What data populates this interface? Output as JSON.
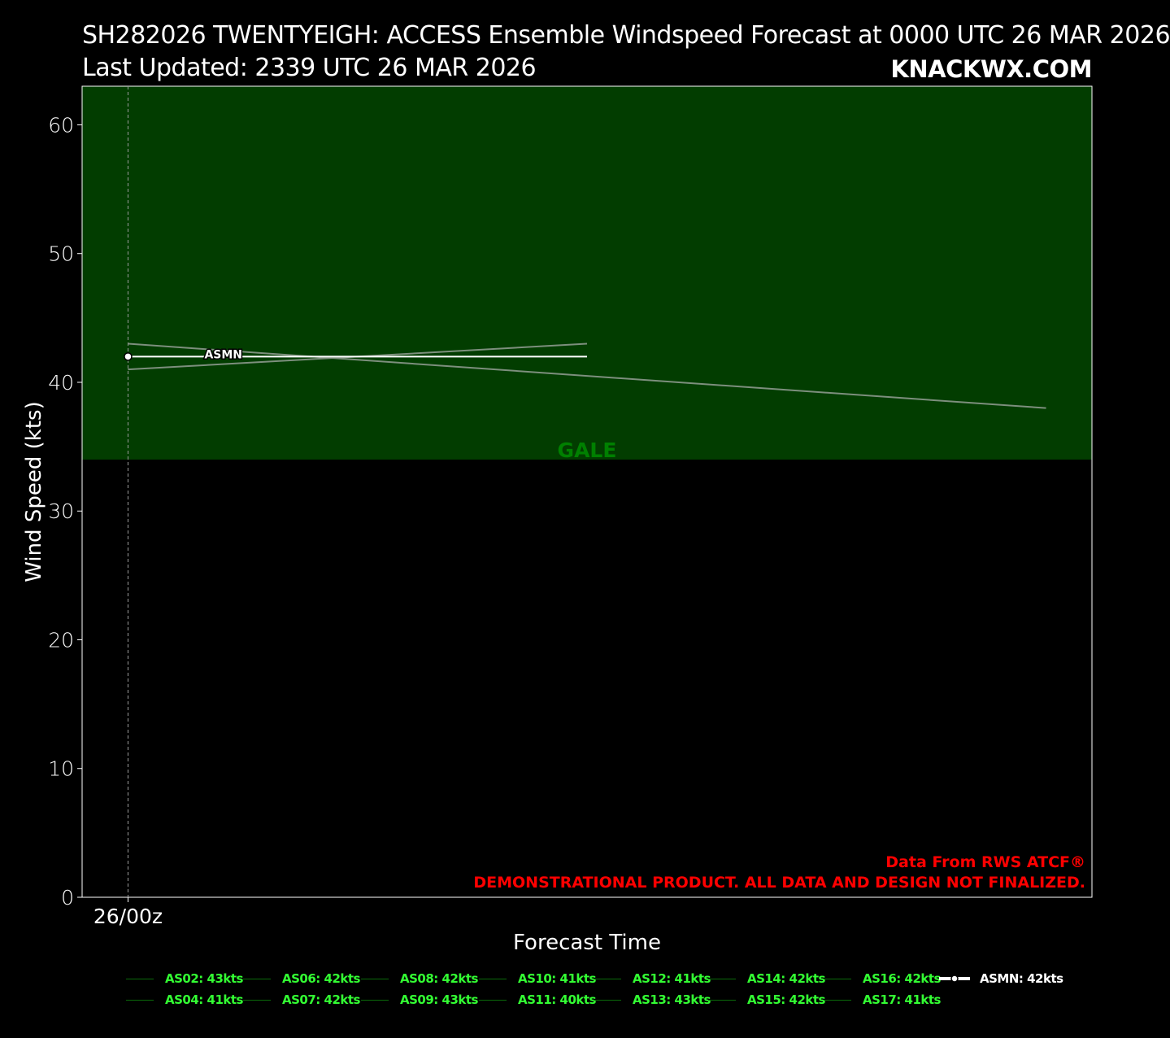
{
  "header": {
    "title_line1": "SH282026 TWENTYEIGH: ACCESS Ensemble Windspeed Forecast at 0000 UTC 26 MAR 2026",
    "title_line2": "Last Updated: 2339 UTC 26 MAR 2026",
    "brand": "KNACKWX.COM"
  },
  "chart_data": {
    "type": "line",
    "xlabel": "Forecast Time",
    "ylabel": "Wind Speed (kts)",
    "ylim": [
      0,
      63
    ],
    "yticks": [
      0,
      10,
      20,
      30,
      40,
      50,
      60
    ],
    "x_tick_labels": [
      {
        "hours": 0,
        "label": "26/00z"
      }
    ],
    "xlim_hours": [
      -6,
      126
    ],
    "grid": false,
    "categories": [
      {
        "name": "GALE",
        "min": 34,
        "max": 63,
        "color": "#023d00",
        "label_color": "#008000"
      }
    ],
    "series": [
      {
        "name": "AS02",
        "x": [
          0,
          60
        ],
        "values": [
          41,
          43
        ]
      },
      {
        "name": "AS08",
        "x": [
          0,
          120
        ],
        "values": [
          43,
          38
        ]
      },
      {
        "name": "ASMN",
        "x": [
          0,
          60
        ],
        "values": [
          42,
          42
        ],
        "mean": true
      }
    ],
    "mean_label": "ASMN",
    "disclaimer_line1": "Data From RWS ATCF®",
    "disclaimer_line2": "DEMONSTRATIONAL PRODUCT. ALL DATA AND DESIGN NOT FINALIZED.",
    "legend_placement": "bottom",
    "legend": [
      {
        "label": "AS02: 43kts",
        "col": 0,
        "row": 0
      },
      {
        "label": "AS04: 41kts",
        "col": 0,
        "row": 1
      },
      {
        "label": "AS06: 42kts",
        "col": 1,
        "row": 0
      },
      {
        "label": "AS07: 42kts",
        "col": 1,
        "row": 1
      },
      {
        "label": "AS08: 42kts",
        "col": 2,
        "row": 0
      },
      {
        "label": "AS09: 43kts",
        "col": 2,
        "row": 1
      },
      {
        "label": "AS10: 41kts",
        "col": 3,
        "row": 0
      },
      {
        "label": "AS11: 40kts",
        "col": 3,
        "row": 1
      },
      {
        "label": "AS12: 41kts",
        "col": 4,
        "row": 0
      },
      {
        "label": "AS13: 43kts",
        "col": 4,
        "row": 1
      },
      {
        "label": "AS14: 42kts",
        "col": 5,
        "row": 0
      },
      {
        "label": "AS15: 42kts",
        "col": 5,
        "row": 1
      },
      {
        "label": "AS16: 42kts",
        "col": 6,
        "row": 0
      },
      {
        "label": "AS17: 41kts",
        "col": 6,
        "row": 1
      }
    ],
    "legend_mean": "ASMN: 42kts",
    "colors": {
      "member_line": "#7d8f7d",
      "mean_line": "#ffffff",
      "legend_text": "#33ff33",
      "legend_swatch": "#0a6a0a",
      "disclaimer": "#ff0000"
    }
  }
}
